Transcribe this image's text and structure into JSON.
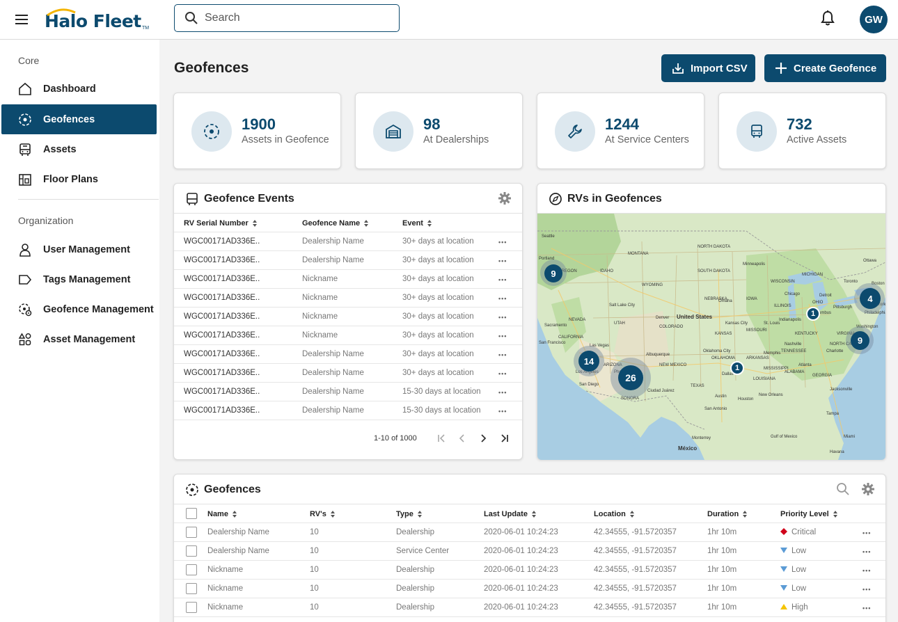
{
  "app": {
    "name": "Halo Fleet",
    "trademark": "TM"
  },
  "search": {
    "placeholder": "Search"
  },
  "user": {
    "initials": "GW"
  },
  "sidebar": {
    "sections": [
      {
        "label": "Core",
        "items": [
          {
            "label": "Dashboard",
            "icon": "home-icon"
          },
          {
            "label": "Geofences",
            "icon": "geofence-icon",
            "active": true
          },
          {
            "label": "Assets",
            "icon": "bus-icon"
          },
          {
            "label": "Floor Plans",
            "icon": "floor-plan-icon"
          }
        ]
      },
      {
        "label": "Organization",
        "items": [
          {
            "label": "User Management",
            "icon": "user-icon"
          },
          {
            "label": "Tags Management",
            "icon": "tag-icon"
          },
          {
            "label": "Geofence Management",
            "icon": "geofence-settings-icon"
          },
          {
            "label": "Asset Management",
            "icon": "shapes-icon"
          }
        ]
      }
    ]
  },
  "page": {
    "title": "Geofences"
  },
  "actions": {
    "import_label": "Import CSV",
    "create_label": "Create Geofence"
  },
  "stats": [
    {
      "value": "1900",
      "label": "Assets in Geofence",
      "icon": "geofence-icon"
    },
    {
      "value": "98",
      "label": "At Dealerships",
      "icon": "dealership-icon"
    },
    {
      "value": "1244",
      "label": "At Service Centers",
      "icon": "wrench-icon"
    },
    {
      "value": "732",
      "label": "Active Assets",
      "icon": "bus-icon"
    }
  ],
  "events": {
    "title": "Geofence Events",
    "columns": [
      "RV Serial Number",
      "Geofence Name",
      "Event"
    ],
    "rows": [
      [
        "WGC00171AD336E..",
        "Dealership Name",
        "30+ days at location"
      ],
      [
        "WGC00171AD336E..",
        "Dealership Name",
        "30+ days at location"
      ],
      [
        "WGC00171AD336E..",
        "Nickname",
        "30+ days at location"
      ],
      [
        "WGC00171AD336E..",
        "Nickname",
        "30+ days at location"
      ],
      [
        "WGC00171AD336E..",
        "Nickname",
        "30+ days at location"
      ],
      [
        "WGC00171AD336E..",
        "Nickname",
        "30+ days at location"
      ],
      [
        "WGC00171AD336E..",
        "Dealership Name",
        "30+ days at location"
      ],
      [
        "WGC00171AD336E..",
        "Dealership Name",
        "30+ days at location"
      ],
      [
        "WGC00171AD336E..",
        "Dealership Name",
        "15-30 days at location"
      ],
      [
        "WGC00171AD336E..",
        "Dealership Name",
        "15-30 days at location"
      ]
    ],
    "pagination": "1-10 of 1000"
  },
  "map": {
    "title": "RVs in Geofences",
    "clusters": [
      "9",
      "4",
      "1",
      "9",
      "14",
      "26",
      "1"
    ],
    "labels": [
      "Seattle",
      "Portland",
      "Sacramento",
      "San Francisco",
      "Las Vegas",
      "Los Angeles",
      "San Diego",
      "Salt Lake City",
      "Phoenix",
      "Denver",
      "Albuquerque",
      "NEW MEXICO",
      "Ciudad Juárez",
      "SONORA",
      "United States",
      "Dallas",
      "Austin",
      "Houston",
      "San Antonio",
      "Monterrey",
      "México",
      "Minneapolis",
      "Chicago",
      "St. Louis",
      "Indianapolis",
      "Nashville",
      "Atlanta",
      "Charlotte",
      "Washington",
      "Philadelphia",
      "New York",
      "Boston",
      "Toronto",
      "Ottawa",
      "Jacksonville",
      "Tampa",
      "Miami",
      "New Orleans",
      "Memphis",
      "Oklahoma City",
      "Kansas City",
      "Omaha",
      "Detroit",
      "Columbus",
      "Pittsburgh",
      "MONTANA",
      "WYOMING",
      "IDAHO",
      "NEVADA",
      "UTAH",
      "COLORADO",
      "KANSAS",
      "NEBRASKA",
      "SOUTH DAKOTA",
      "NORTH DAKOTA",
      "IOWA",
      "MISSOURI",
      "OKLAHOMA",
      "TEXAS",
      "ARKANSAS",
      "ALABAMA",
      "GEORGIA",
      "TENNESSEE",
      "KENTUCKY",
      "OHIO",
      "ILLINOIS",
      "WISCONSIN",
      "MICHIGAN",
      "OREGON",
      "CALIFORNIA",
      "ARIZONA",
      "LOUISIANA",
      "MISSISSIPPI",
      "VIRGINIA",
      "NORTH CAROLINA",
      "Gulf of Mexico",
      "Havana"
    ]
  },
  "geofences": {
    "title": "Geofences",
    "columns": [
      "Name",
      "RV's",
      "Type",
      "Last Update",
      "Location",
      "Duration",
      "Priority Level"
    ],
    "rows": [
      {
        "name": "Dealership Name",
        "rvs": "10",
        "type": "Dealership",
        "updated": "2020-06-01 10:24:23",
        "location": "42.34555, -91.5720357",
        "duration": "1hr 10m",
        "priority": "Critical",
        "pcolor": "#d0021b",
        "pshape": "diamond"
      },
      {
        "name": "Dealership Name",
        "rvs": "10",
        "type": "Service Center",
        "updated": "2020-06-01 10:24:23",
        "location": "42.34555, -91.5720357",
        "duration": "1hr 10m",
        "priority": "Low",
        "pcolor": "#5b9bd5",
        "pshape": "down"
      },
      {
        "name": "Nickname",
        "rvs": "10",
        "type": "Dealership",
        "updated": "2020-06-01 10:24:23",
        "location": "42.34555, -91.5720357",
        "duration": "1hr 10m",
        "priority": "Low",
        "pcolor": "#5b9bd5",
        "pshape": "down"
      },
      {
        "name": "Nickname",
        "rvs": "10",
        "type": "Dealership",
        "updated": "2020-06-01 10:24:23",
        "location": "42.34555, -91.5720357",
        "duration": "1hr 10m",
        "priority": "Low",
        "pcolor": "#5b9bd5",
        "pshape": "down"
      },
      {
        "name": "Nickname",
        "rvs": "10",
        "type": "Dealership",
        "updated": "2020-06-01 10:24:23",
        "location": "42.34555, -91.5720357",
        "duration": "1hr 10m",
        "priority": "High",
        "pcolor": "#f5c400",
        "pshape": "up"
      }
    ]
  },
  "colors": {
    "brand": "#0c4a6e",
    "map_water": "#a8cde3",
    "map_land": "#d9e8c6"
  }
}
